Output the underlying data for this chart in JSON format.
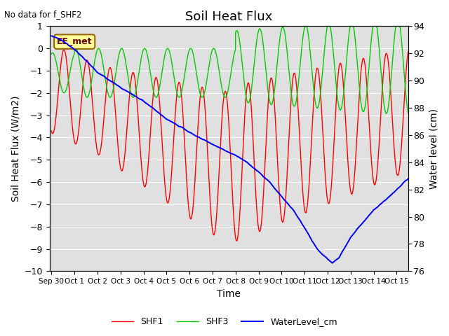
{
  "title": "Soil Heat Flux",
  "note": "No data for f_SHF2",
  "xlabel": "Time",
  "ylabel_left": "Soil Heat Flux (W/m2)",
  "ylabel_right": "Water level (cm)",
  "ylim_left": [
    -10.0,
    1.0
  ],
  "ylim_right": [
    76,
    94
  ],
  "yticks_left": [
    -10.0,
    -9.0,
    -8.0,
    -7.0,
    -6.0,
    -5.0,
    -4.0,
    -3.0,
    -2.0,
    -1.0,
    0.0,
    1.0
  ],
  "yticks_right": [
    76,
    78,
    80,
    82,
    84,
    86,
    88,
    90,
    92,
    94
  ],
  "color_shf1": "#ff0000",
  "color_shf3": "#00cc00",
  "color_water": "#0000ff",
  "background_plot": "#e0e0e0",
  "background_fig": "#ffffff",
  "grid_color": "#ffffff",
  "legend_label_shf1": "SHF1",
  "legend_label_shf3": "SHF3",
  "legend_label_water": "WaterLevel_cm",
  "ee_met_label": "EE_met",
  "ee_met_bg": "#ffff99",
  "ee_met_border": "#996600",
  "title_fontsize": 13,
  "axis_label_fontsize": 10,
  "tick_fontsize": 9,
  "xlim": [
    -0.08,
    15.5
  ],
  "tick_positions": [
    0,
    1,
    2,
    3,
    4,
    5,
    6,
    7,
    8,
    9,
    10,
    11,
    12,
    13,
    14,
    15
  ],
  "tick_labels": [
    "Sep 30",
    "Oct 1",
    "Oct 2",
    "Oct 3",
    "Oct 4",
    "Oct 5",
    "Oct 6",
    "Oct 7",
    "Oct 8",
    "Oct 9",
    "Oct 10",
    "Oct 11",
    "Oct 12",
    "Oct 13",
    "Oct 14",
    "Oct 15"
  ]
}
